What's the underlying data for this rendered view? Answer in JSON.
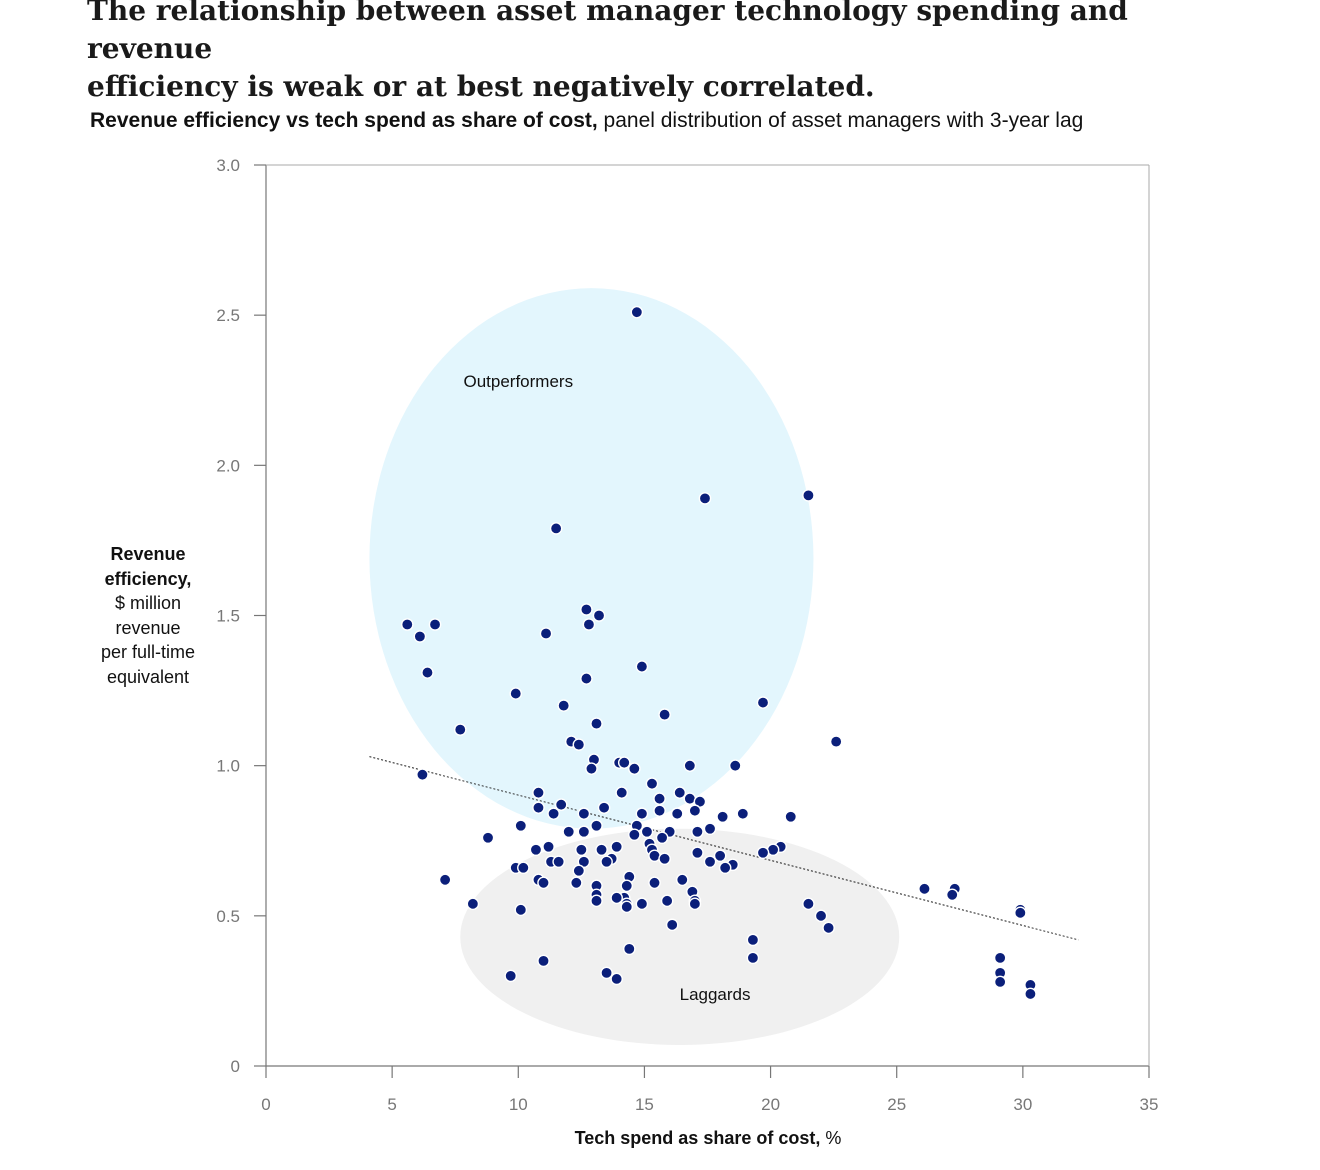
{
  "headline": {
    "line1": "The relationship between asset manager technology spending and revenue",
    "line2": "efficiency is weak or at best negatively correlated."
  },
  "subtitle": {
    "bold": "Revenue efficiency vs tech spend as share of cost,",
    "rest": " panel distribution of asset managers with 3-year lag"
  },
  "y_axis_label": {
    "bold_line1": "Revenue",
    "bold_line2": "efficiency,",
    "line3": "$ million",
    "line4": "revenue",
    "line5": "per full-time",
    "line6": "equivalent"
  },
  "x_axis_label": {
    "bold": "Tech spend as share of cost,",
    "rest": " %"
  },
  "colors": {
    "dot": "#0b1f7a",
    "outperformers_fill": "#e3f6fd",
    "laggards_fill": "#f0f0f0",
    "axis": "#888888",
    "trend": "#222222"
  },
  "chart_data": {
    "type": "scatter",
    "title": "Revenue efficiency vs tech spend as share of cost, panel distribution of asset managers with 3-year lag",
    "xlabel": "Tech spend as share of cost, %",
    "ylabel": "Revenue efficiency, $ million revenue per full-time equivalent",
    "xlim": [
      0,
      35
    ],
    "ylim": [
      0,
      3.0
    ],
    "x_ticks": [
      0,
      5,
      10,
      15,
      20,
      25,
      30,
      35
    ],
    "x_tick_labels": [
      "0",
      "5",
      "10",
      "15",
      "20",
      "25",
      "30",
      "35"
    ],
    "y_ticks": [
      0,
      0.5,
      1.0,
      1.5,
      2.0,
      2.5,
      3.0
    ],
    "y_tick_labels": [
      "0",
      "0.5",
      "1.0",
      "1.5",
      "2.0",
      "2.5",
      "3.0"
    ],
    "regions": [
      {
        "name": "Outperformers",
        "label": "Outperformers",
        "center": [
          12.9,
          1.69
        ],
        "radius": [
          8.8,
          0.9
        ],
        "label_at": [
          10.0,
          2.26
        ]
      },
      {
        "name": "Laggards",
        "label": "Laggards",
        "center": [
          16.4,
          0.43
        ],
        "radius": [
          8.7,
          0.36
        ],
        "label_at": [
          17.8,
          0.22
        ]
      }
    ],
    "trendline": {
      "x": [
        4.1,
        32.2
      ],
      "y": [
        1.03,
        0.42
      ]
    },
    "points": [
      {
        "x": 14.7,
        "y": 2.51
      },
      {
        "x": 17.4,
        "y": 1.89
      },
      {
        "x": 21.5,
        "y": 1.9
      },
      {
        "x": 11.5,
        "y": 1.79
      },
      {
        "x": 12.7,
        "y": 1.52
      },
      {
        "x": 13.2,
        "y": 1.5
      },
      {
        "x": 12.8,
        "y": 1.47
      },
      {
        "x": 5.6,
        "y": 1.47
      },
      {
        "x": 6.7,
        "y": 1.47
      },
      {
        "x": 6.1,
        "y": 1.43
      },
      {
        "x": 11.1,
        "y": 1.44
      },
      {
        "x": 14.9,
        "y": 1.33
      },
      {
        "x": 6.4,
        "y": 1.31
      },
      {
        "x": 12.7,
        "y": 1.29
      },
      {
        "x": 9.9,
        "y": 1.24
      },
      {
        "x": 11.8,
        "y": 1.2
      },
      {
        "x": 19.7,
        "y": 1.21
      },
      {
        "x": 15.8,
        "y": 1.17
      },
      {
        "x": 13.1,
        "y": 1.14
      },
      {
        "x": 7.7,
        "y": 1.12
      },
      {
        "x": 12.1,
        "y": 1.08
      },
      {
        "x": 12.4,
        "y": 1.07
      },
      {
        "x": 22.6,
        "y": 1.08
      },
      {
        "x": 13.0,
        "y": 1.02
      },
      {
        "x": 14.0,
        "y": 1.01
      },
      {
        "x": 14.2,
        "y": 1.01
      },
      {
        "x": 12.9,
        "y": 0.99
      },
      {
        "x": 14.6,
        "y": 0.99
      },
      {
        "x": 16.8,
        "y": 1.0
      },
      {
        "x": 18.6,
        "y": 1.0
      },
      {
        "x": 6.2,
        "y": 0.97
      },
      {
        "x": 15.3,
        "y": 0.94
      },
      {
        "x": 10.8,
        "y": 0.91
      },
      {
        "x": 14.1,
        "y": 0.91
      },
      {
        "x": 16.4,
        "y": 0.91
      },
      {
        "x": 15.6,
        "y": 0.89
      },
      {
        "x": 16.8,
        "y": 0.89
      },
      {
        "x": 17.2,
        "y": 0.88
      },
      {
        "x": 11.7,
        "y": 0.87
      },
      {
        "x": 10.8,
        "y": 0.86
      },
      {
        "x": 13.4,
        "y": 0.86
      },
      {
        "x": 11.4,
        "y": 0.84
      },
      {
        "x": 12.6,
        "y": 0.84
      },
      {
        "x": 14.9,
        "y": 0.84
      },
      {
        "x": 15.6,
        "y": 0.85
      },
      {
        "x": 16.3,
        "y": 0.84
      },
      {
        "x": 17.0,
        "y": 0.85
      },
      {
        "x": 18.9,
        "y": 0.84
      },
      {
        "x": 18.1,
        "y": 0.83
      },
      {
        "x": 20.8,
        "y": 0.83
      },
      {
        "x": 10.1,
        "y": 0.8
      },
      {
        "x": 13.1,
        "y": 0.8
      },
      {
        "x": 14.7,
        "y": 0.8
      },
      {
        "x": 17.6,
        "y": 0.79
      },
      {
        "x": 12.0,
        "y": 0.78
      },
      {
        "x": 12.6,
        "y": 0.78
      },
      {
        "x": 15.1,
        "y": 0.78
      },
      {
        "x": 16.0,
        "y": 0.78
      },
      {
        "x": 17.1,
        "y": 0.78
      },
      {
        "x": 14.6,
        "y": 0.77
      },
      {
        "x": 15.7,
        "y": 0.76
      },
      {
        "x": 8.8,
        "y": 0.76
      },
      {
        "x": 15.2,
        "y": 0.74
      },
      {
        "x": 11.2,
        "y": 0.73
      },
      {
        "x": 13.9,
        "y": 0.73
      },
      {
        "x": 20.4,
        "y": 0.73
      },
      {
        "x": 15.3,
        "y": 0.72
      },
      {
        "x": 10.7,
        "y": 0.72
      },
      {
        "x": 12.5,
        "y": 0.72
      },
      {
        "x": 13.3,
        "y": 0.72
      },
      {
        "x": 20.1,
        "y": 0.72
      },
      {
        "x": 17.1,
        "y": 0.71
      },
      {
        "x": 19.7,
        "y": 0.71
      },
      {
        "x": 15.4,
        "y": 0.7
      },
      {
        "x": 18.0,
        "y": 0.7
      },
      {
        "x": 13.7,
        "y": 0.69
      },
      {
        "x": 15.8,
        "y": 0.69
      },
      {
        "x": 11.3,
        "y": 0.68
      },
      {
        "x": 11.6,
        "y": 0.68
      },
      {
        "x": 12.6,
        "y": 0.68
      },
      {
        "x": 13.5,
        "y": 0.68
      },
      {
        "x": 17.6,
        "y": 0.68
      },
      {
        "x": 18.5,
        "y": 0.67
      },
      {
        "x": 9.9,
        "y": 0.66
      },
      {
        "x": 10.2,
        "y": 0.66
      },
      {
        "x": 18.2,
        "y": 0.66
      },
      {
        "x": 12.4,
        "y": 0.65
      },
      {
        "x": 7.1,
        "y": 0.62
      },
      {
        "x": 10.8,
        "y": 0.62
      },
      {
        "x": 14.4,
        "y": 0.63
      },
      {
        "x": 16.5,
        "y": 0.62
      },
      {
        "x": 11.0,
        "y": 0.61
      },
      {
        "x": 12.3,
        "y": 0.61
      },
      {
        "x": 15.4,
        "y": 0.61
      },
      {
        "x": 14.3,
        "y": 0.6
      },
      {
        "x": 13.1,
        "y": 0.6
      },
      {
        "x": 26.1,
        "y": 0.59
      },
      {
        "x": 27.3,
        "y": 0.59
      },
      {
        "x": 16.9,
        "y": 0.58
      },
      {
        "x": 13.1,
        "y": 0.57
      },
      {
        "x": 27.2,
        "y": 0.57
      },
      {
        "x": 14.2,
        "y": 0.56
      },
      {
        "x": 13.9,
        "y": 0.56
      },
      {
        "x": 17.0,
        "y": 0.55
      },
      {
        "x": 15.9,
        "y": 0.55
      },
      {
        "x": 13.1,
        "y": 0.55
      },
      {
        "x": 14.3,
        "y": 0.54
      },
      {
        "x": 17.0,
        "y": 0.54
      },
      {
        "x": 8.2,
        "y": 0.54
      },
      {
        "x": 14.9,
        "y": 0.54
      },
      {
        "x": 21.5,
        "y": 0.54
      },
      {
        "x": 14.3,
        "y": 0.53
      },
      {
        "x": 29.9,
        "y": 0.52
      },
      {
        "x": 10.1,
        "y": 0.52
      },
      {
        "x": 29.9,
        "y": 0.51
      },
      {
        "x": 22.0,
        "y": 0.5
      },
      {
        "x": 16.1,
        "y": 0.47
      },
      {
        "x": 22.3,
        "y": 0.46
      },
      {
        "x": 19.3,
        "y": 0.42
      },
      {
        "x": 14.4,
        "y": 0.39
      },
      {
        "x": 29.1,
        "y": 0.36
      },
      {
        "x": 19.3,
        "y": 0.36
      },
      {
        "x": 11.0,
        "y": 0.35
      },
      {
        "x": 13.5,
        "y": 0.31
      },
      {
        "x": 9.7,
        "y": 0.3
      },
      {
        "x": 29.1,
        "y": 0.31
      },
      {
        "x": 13.9,
        "y": 0.29
      },
      {
        "x": 29.1,
        "y": 0.28
      },
      {
        "x": 30.3,
        "y": 0.27
      },
      {
        "x": 30.3,
        "y": 0.24
      }
    ]
  }
}
